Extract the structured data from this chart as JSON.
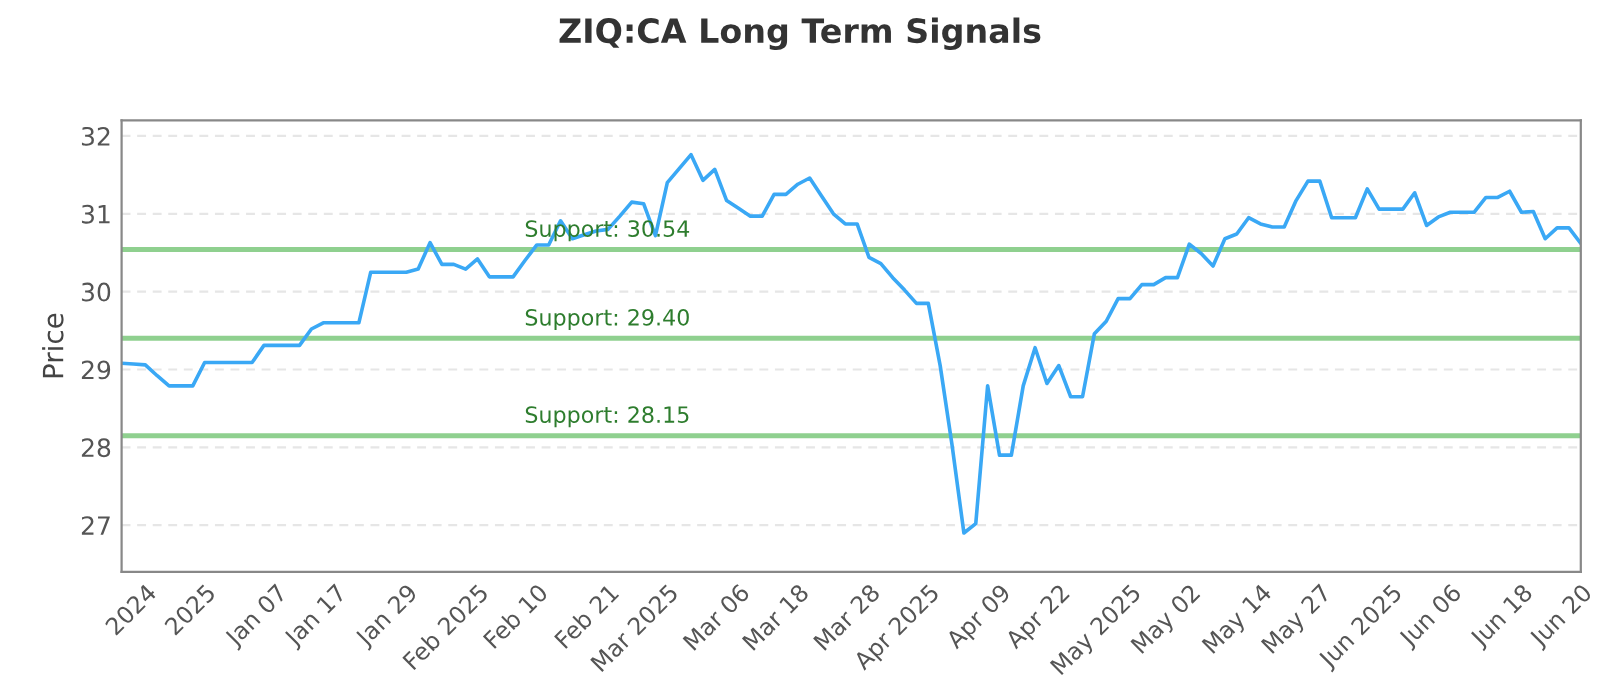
{
  "chart_data": {
    "type": "line",
    "title": "ZIQ:CA Long Term Signals",
    "ylabel": "Price",
    "ylim": [
      26.4,
      32.2
    ],
    "yticks": [
      27,
      28,
      29,
      30,
      31,
      32
    ],
    "categories": [
      null,
      null,
      "2024",
      null,
      null,
      null,
      null,
      "2025",
      null,
      null,
      null,
      null,
      null,
      "Jan 07",
      null,
      null,
      null,
      null,
      "Jan 17",
      null,
      null,
      null,
      null,
      null,
      "Jan 29",
      null,
      null,
      null,
      null,
      null,
      "Feb 2025",
      null,
      null,
      null,
      null,
      "Feb 10",
      null,
      null,
      null,
      null,
      null,
      "Feb 21",
      null,
      null,
      null,
      null,
      "Mar 2025",
      null,
      null,
      null,
      null,
      null,
      "Mar 06",
      null,
      null,
      null,
      null,
      "Mar 18",
      null,
      null,
      null,
      null,
      null,
      "Mar 28",
      null,
      null,
      null,
      null,
      "Apr 2025",
      null,
      null,
      null,
      null,
      null,
      "Apr 09",
      null,
      null,
      null,
      null,
      "Apr 22",
      null,
      null,
      null,
      null,
      null,
      "May 2025",
      null,
      null,
      null,
      null,
      "May 02",
      null,
      null,
      null,
      null,
      null,
      "May 14",
      null,
      null,
      null,
      null,
      "May 27",
      null,
      null,
      null,
      null,
      null,
      "Jun 2025",
      null,
      null,
      null,
      null,
      "Jun 06",
      null,
      null,
      null,
      null,
      null,
      "Jun 18",
      null,
      null,
      null,
      null,
      "Jun 20"
    ],
    "grid": "y",
    "legend": false,
    "line_style": "solid",
    "marker": "none",
    "series": [
      {
        "color": "#3aa8f5",
        "values": [
          29.08,
          29.07,
          29.06,
          28.92,
          28.79,
          28.79,
          28.79,
          29.09,
          29.09,
          29.09,
          29.09,
          29.09,
          29.31,
          29.31,
          29.31,
          29.31,
          29.52,
          29.6,
          29.6,
          29.6,
          29.6,
          30.25,
          30.25,
          30.25,
          30.25,
          30.29,
          30.63,
          30.35,
          30.35,
          30.29,
          30.42,
          30.19,
          30.19,
          30.19,
          30.4,
          30.6,
          30.6,
          30.91,
          30.68,
          30.73,
          30.78,
          30.8,
          30.97,
          31.15,
          31.13,
          30.72,
          31.4,
          31.58,
          31.76,
          31.43,
          31.57,
          31.17,
          31.07,
          30.97,
          30.97,
          31.25,
          31.25,
          31.38,
          31.46,
          31.23,
          31.0,
          30.87,
          30.87,
          30.44,
          30.36,
          30.18,
          30.02,
          29.85,
          29.85,
          29.05,
          28.03,
          26.9,
          27.02,
          28.79,
          27.9,
          27.9,
          28.79,
          29.28,
          28.82,
          29.05,
          28.65,
          28.65,
          29.46,
          29.62,
          29.91,
          29.91,
          30.09,
          30.09,
          30.18,
          30.18,
          30.61,
          30.49,
          30.33,
          30.68,
          30.74,
          30.95,
          30.87,
          30.83,
          30.83,
          31.17,
          31.42,
          31.42,
          30.95,
          30.95,
          30.95,
          31.32,
          31.06,
          31.06,
          31.06,
          31.27,
          30.85,
          30.96,
          31.02,
          31.02,
          31.02,
          31.21,
          31.21,
          31.29,
          31.02,
          31.03,
          30.68,
          30.82,
          30.82,
          30.62
        ]
      }
    ],
    "ref_lines": [
      {
        "axis": "y",
        "value": 30.54,
        "label": "Support: 30.54",
        "color": "#8fd08f"
      },
      {
        "axis": "y",
        "value": 29.4,
        "label": "Support: 29.40",
        "color": "#8fd08f"
      },
      {
        "axis": "y",
        "value": 28.15,
        "label": "Support: 28.15",
        "color": "#8fd08f"
      }
    ]
  }
}
